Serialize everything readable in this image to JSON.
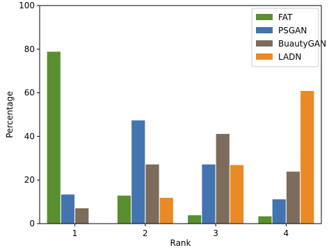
{
  "chart_data": {
    "type": "bar",
    "categories": [
      "1",
      "2",
      "3",
      "4"
    ],
    "series": [
      {
        "name": "FAT",
        "color": "#5a8f2f",
        "values": [
          79,
          13,
          4,
          3.5
        ]
      },
      {
        "name": "PSGAN",
        "color": "#4474b0",
        "values": [
          13.5,
          47.5,
          27.3,
          11.3
        ]
      },
      {
        "name": "BuautyGAN",
        "color": "#7d6b5c",
        "values": [
          7.2,
          27.3,
          41.3,
          24
        ]
      },
      {
        "name": "LADN",
        "color": "#ea8a25",
        "values": [
          0,
          12,
          27,
          61
        ]
      }
    ],
    "xlabel": "Rank",
    "ylabel": "Percentage",
    "ylim": [
      0,
      100
    ],
    "yticks": [
      0,
      20,
      40,
      60,
      80,
      100
    ],
    "grid": false,
    "legend": "top-right"
  }
}
